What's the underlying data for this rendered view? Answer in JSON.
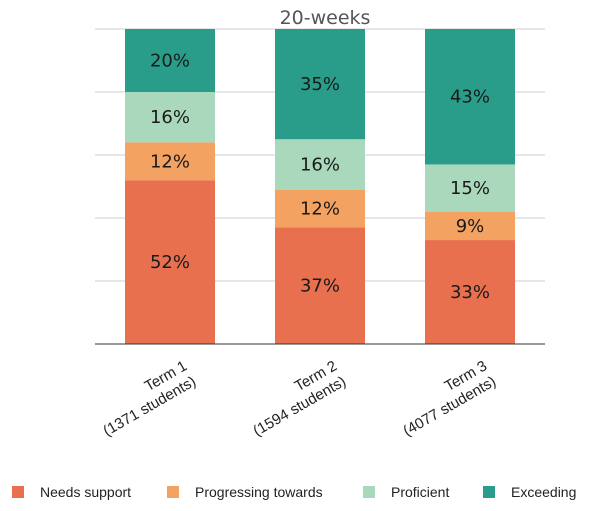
{
  "chart_data": {
    "type": "bar",
    "stacked": true,
    "title": "20-weeks",
    "categories": [
      [
        "Term 1",
        "(1371 students)"
      ],
      [
        "Term 2",
        "(1594 students)"
      ],
      [
        "Term 3",
        "(4077 students)"
      ]
    ],
    "series": [
      {
        "name": "Needs support",
        "color": "#E8704F",
        "values": [
          52,
          37,
          33
        ]
      },
      {
        "name": "Progressing towards",
        "color": "#F3A262",
        "values": [
          12,
          12,
          9
        ]
      },
      {
        "name": "Proficient",
        "color": "#A9D8BC",
        "values": [
          16,
          16,
          15
        ]
      },
      {
        "name": "Exceeding",
        "color": "#2A9D8A",
        "values": [
          20,
          35,
          43
        ]
      }
    ],
    "value_suffix": "%",
    "ylim": [
      0,
      100
    ],
    "grid": true,
    "legend_position": "bottom"
  }
}
